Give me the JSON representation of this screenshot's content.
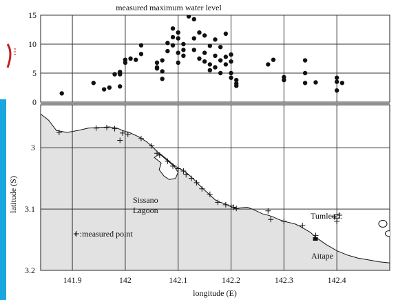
{
  "chart_data": [
    {
      "type": "scatter",
      "title": "measured maximum water level",
      "xlim": [
        141.84,
        142.5
      ],
      "ylim": [
        0,
        15
      ],
      "yticks": [
        0,
        5,
        10,
        15
      ],
      "ytick_labels": [
        "0",
        "5",
        "10",
        "15"
      ],
      "grid": true,
      "points": [
        [
          141.88,
          1.5
        ],
        [
          141.94,
          3.3
        ],
        [
          141.96,
          2.2
        ],
        [
          141.97,
          2.5
        ],
        [
          141.98,
          4.8
        ],
        [
          141.99,
          4.8
        ],
        [
          141.99,
          2.7
        ],
        [
          141.99,
          5.2
        ],
        [
          142.0,
          6.8
        ],
        [
          142.0,
          7.3
        ],
        [
          142.01,
          7.5
        ],
        [
          142.02,
          7.3
        ],
        [
          142.03,
          8.3
        ],
        [
          142.03,
          9.8
        ],
        [
          142.06,
          5.8
        ],
        [
          142.06,
          6.0
        ],
        [
          142.06,
          6.8
        ],
        [
          142.07,
          7.2
        ],
        [
          142.07,
          4.0
        ],
        [
          142.07,
          5.3
        ],
        [
          142.08,
          10.2
        ],
        [
          142.08,
          8.8
        ],
        [
          142.09,
          9.8
        ],
        [
          142.09,
          11.2
        ],
        [
          142.09,
          12.7
        ],
        [
          142.1,
          12.0
        ],
        [
          142.1,
          11.0
        ],
        [
          142.1,
          8.5
        ],
        [
          142.1,
          6.8
        ],
        [
          142.11,
          8.0
        ],
        [
          142.11,
          10.0
        ],
        [
          142.11,
          9.0
        ],
        [
          142.12,
          14.8
        ],
        [
          142.13,
          14.3
        ],
        [
          142.13,
          11.0
        ],
        [
          142.13,
          9.0
        ],
        [
          142.14,
          12.0
        ],
        [
          142.14,
          7.5
        ],
        [
          142.15,
          11.5
        ],
        [
          142.15,
          8.5
        ],
        [
          142.15,
          7.0
        ],
        [
          142.16,
          9.7
        ],
        [
          142.16,
          6.5
        ],
        [
          142.16,
          5.5
        ],
        [
          142.17,
          10.8
        ],
        [
          142.17,
          8.0
        ],
        [
          142.17,
          6.0
        ],
        [
          142.18,
          9.5
        ],
        [
          142.18,
          7.2
        ],
        [
          142.18,
          5.0
        ],
        [
          142.19,
          11.8
        ],
        [
          142.19,
          7.8
        ],
        [
          142.19,
          6.5
        ],
        [
          142.2,
          8.2
        ],
        [
          142.2,
          7.0
        ],
        [
          142.2,
          5.0
        ],
        [
          142.2,
          4.2
        ],
        [
          142.21,
          3.8
        ],
        [
          142.21,
          3.2
        ],
        [
          142.21,
          2.8
        ],
        [
          142.27,
          6.5
        ],
        [
          142.28,
          7.3
        ],
        [
          142.3,
          4.3
        ],
        [
          142.3,
          3.8
        ],
        [
          142.34,
          7.2
        ],
        [
          142.34,
          5.0
        ],
        [
          142.34,
          3.3
        ],
        [
          142.36,
          3.4
        ],
        [
          142.4,
          4.2
        ],
        [
          142.4,
          3.5
        ],
        [
          142.4,
          2.0
        ],
        [
          142.41,
          3.3
        ]
      ]
    },
    {
      "type": "map",
      "xlabel": "longitude (E)",
      "ylabel": "latitude (S)",
      "xlim": [
        141.84,
        142.5
      ],
      "ylim": [
        2.93,
        3.2
      ],
      "xticks": [
        141.9,
        142.0,
        142.1,
        142.2,
        142.3,
        142.4
      ],
      "xtick_labels": [
        "141.9",
        "142",
        "142.1",
        "142.2",
        "142.3",
        "142.4"
      ],
      "yticks": [
        3.0,
        3.1,
        3.2
      ],
      "ytick_labels": [
        "3",
        "3.1",
        "3.2"
      ],
      "grid": true,
      "annotations": {
        "lagoon_line1": "Sissano",
        "lagoon_line2": "Lagoon",
        "island": "Tumleo I.",
        "town": "Aitape",
        "legend": "+ :measured point"
      },
      "measured_points": [
        [
          141.875,
          2.975
        ],
        [
          141.945,
          2.968
        ],
        [
          141.965,
          2.967
        ],
        [
          141.98,
          2.969
        ],
        [
          141.99,
          2.988
        ],
        [
          141.995,
          2.976
        ],
        [
          142.005,
          2.978
        ],
        [
          142.03,
          2.985
        ],
        [
          142.05,
          2.997
        ],
        [
          142.06,
          3.009
        ],
        [
          142.065,
          3.012
        ],
        [
          142.08,
          3.022
        ],
        [
          142.09,
          3.03
        ],
        [
          142.1,
          3.034
        ],
        [
          142.11,
          3.038
        ],
        [
          142.115,
          3.044
        ],
        [
          142.125,
          3.05
        ],
        [
          142.135,
          3.057
        ],
        [
          142.145,
          3.067
        ],
        [
          142.16,
          3.076
        ],
        [
          142.175,
          3.089
        ],
        [
          142.19,
          3.093
        ],
        [
          142.2,
          3.095
        ],
        [
          142.205,
          3.097
        ],
        [
          142.21,
          3.099
        ],
        [
          142.27,
          3.103
        ],
        [
          142.275,
          3.117
        ],
        [
          142.3,
          3.12
        ],
        [
          142.335,
          3.127
        ],
        [
          142.36,
          3.143
        ],
        [
          142.395,
          3.113
        ],
        [
          142.4,
          3.12
        ],
        [
          142.405,
          3.11
        ]
      ]
    }
  ]
}
